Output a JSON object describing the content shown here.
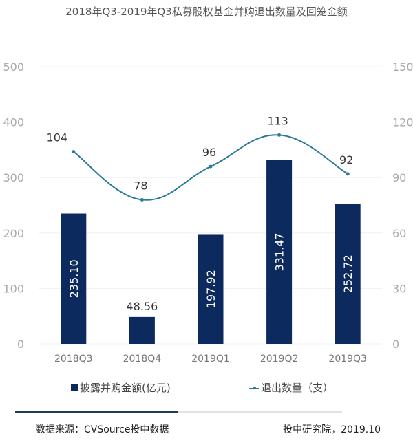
{
  "title": "2018年Q3-2019年Q3私募股权基金并购退出数量及回笼金额",
  "legend": {
    "bar_label": "披露并购金额(亿元)",
    "line_label": "退出数量（支）"
  },
  "footer": {
    "source": "数据来源：CVSource投中数据",
    "credit": "投中研究院，2019.10"
  },
  "colors": {
    "bar": "#0d2a5e",
    "line": "#2a7a99",
    "axis_text": "#aaaaaa",
    "grid": "#f0f0f0"
  },
  "chart_data": {
    "type": "bar+line",
    "title": "2018年Q3-2019年Q3私募股权基金并购退出数量及回笼金额",
    "categories": [
      "2018Q3",
      "2018Q4",
      "2019Q1",
      "2019Q2",
      "2019Q3"
    ],
    "series": [
      {
        "name": "披露并购金额(亿元)",
        "type": "bar",
        "axis": "left",
        "values": [
          235.1,
          48.56,
          197.92,
          331.47,
          252.72
        ],
        "labels": [
          "235.10",
          "48.56",
          "197.92",
          "331.47",
          "252.72"
        ]
      },
      {
        "name": "退出数量（支）",
        "type": "line",
        "axis": "right",
        "values": [
          104,
          78,
          96,
          113,
          92
        ],
        "labels": [
          "104",
          "78",
          "96",
          "113",
          "92"
        ]
      }
    ],
    "y_left": {
      "range": [
        0,
        500
      ],
      "ticks": [
        "0",
        "100",
        "200",
        "300",
        "400",
        "500"
      ]
    },
    "y_right": {
      "range": [
        0,
        150
      ],
      "ticks": [
        "0",
        "30",
        "60",
        "90",
        "120",
        "150"
      ]
    },
    "grid": true,
    "legend_position": "bottom"
  }
}
